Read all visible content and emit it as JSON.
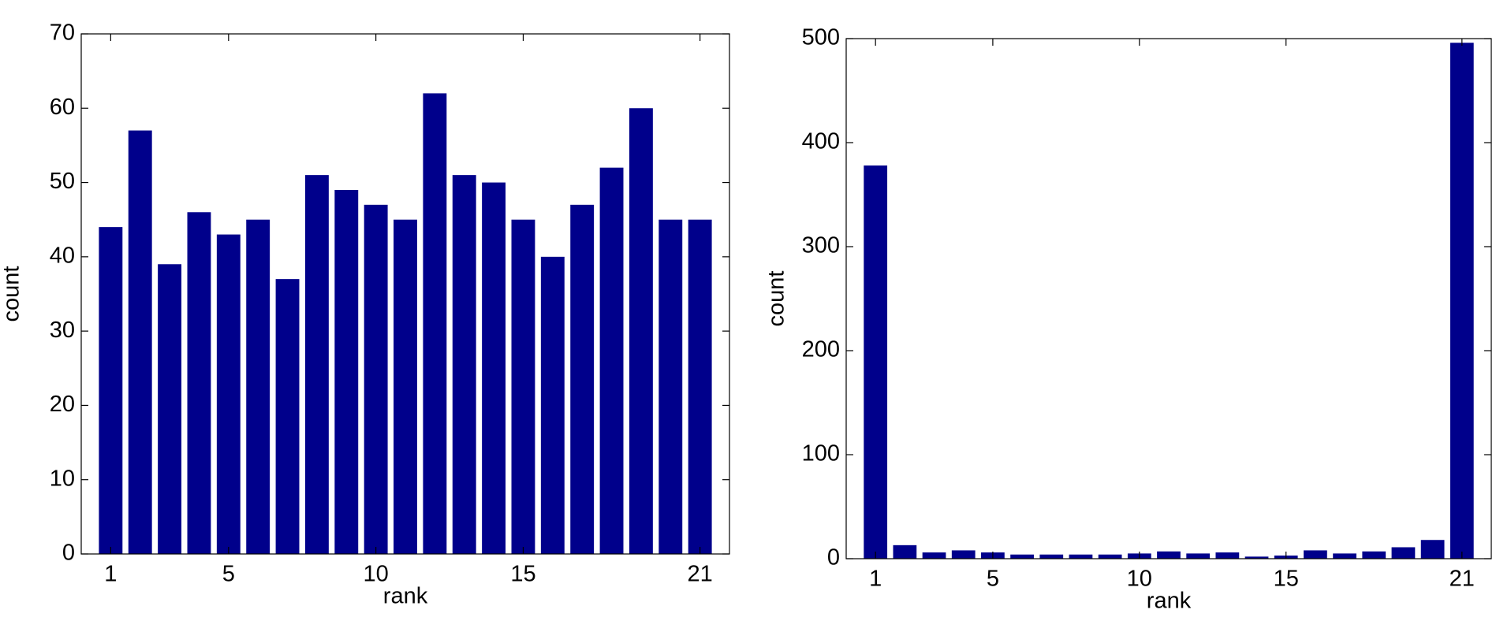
{
  "chart_data": [
    {
      "type": "bar",
      "x_label": "rank",
      "y_label": "count",
      "x": [
        1,
        2,
        3,
        4,
        5,
        6,
        7,
        8,
        9,
        10,
        11,
        12,
        13,
        14,
        15,
        16,
        17,
        18,
        19,
        20,
        21
      ],
      "values": [
        44,
        57,
        39,
        46,
        43,
        45,
        37,
        51,
        49,
        47,
        45,
        62,
        51,
        50,
        45,
        40,
        47,
        52,
        60,
        45,
        45
      ],
      "color": "#00008b",
      "xlim": [
        0,
        22
      ],
      "xticks": [
        1,
        5,
        10,
        15,
        21
      ],
      "ylim": [
        0,
        70
      ],
      "yticks": [
        0,
        10,
        20,
        30,
        40,
        50,
        60,
        70
      ]
    },
    {
      "type": "bar",
      "x_label": "rank",
      "y_label": "count",
      "x": [
        1,
        2,
        3,
        4,
        5,
        6,
        7,
        8,
        9,
        10,
        11,
        12,
        13,
        14,
        15,
        16,
        17,
        18,
        19,
        20,
        21
      ],
      "values": [
        378,
        13,
        6,
        8,
        6,
        4,
        4,
        4,
        4,
        5,
        7,
        5,
        6,
        2,
        3,
        8,
        5,
        7,
        11,
        18,
        496
      ],
      "color": "#00008b",
      "xlim": [
        0,
        22
      ],
      "xticks": [
        1,
        5,
        10,
        15,
        21
      ],
      "ylim": [
        0,
        500
      ],
      "yticks": [
        0,
        100,
        200,
        300,
        400,
        500
      ]
    }
  ]
}
